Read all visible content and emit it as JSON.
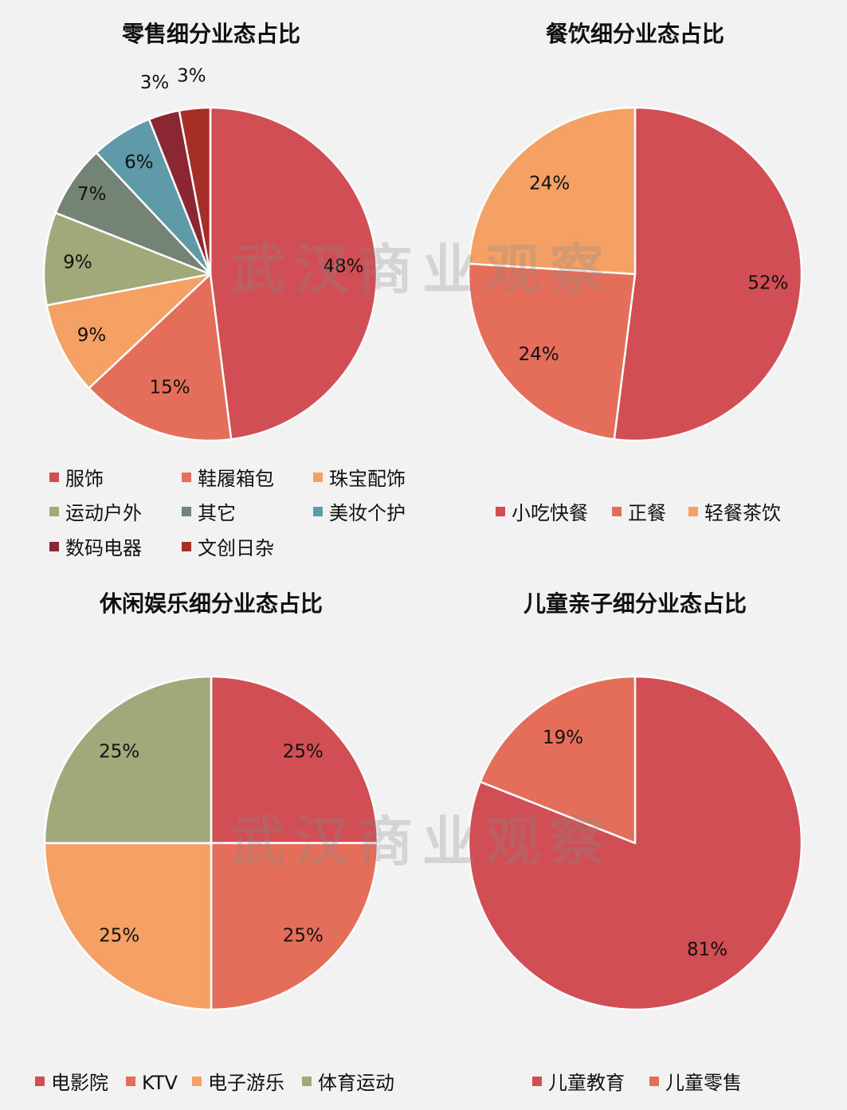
{
  "watermark": "武汉商业观察",
  "chart_data": [
    {
      "type": "pie",
      "title": "零售细分业态占比",
      "categories": [
        "服饰",
        "鞋履箱包",
        "珠宝配饰",
        "运动户外",
        "其它",
        "美妆个护",
        "数码电器",
        "文创日杂"
      ],
      "values": [
        48,
        15,
        9,
        9,
        7,
        6,
        3,
        3
      ],
      "labels": [
        "48%",
        "15%",
        "9%",
        "9%",
        "7%",
        "6%",
        "3%",
        "3%"
      ],
      "colors": [
        "#d14e54",
        "#e56e5a",
        "#f5a064",
        "#a1a97a",
        "#748474",
        "#5f9aa8",
        "#8b2633",
        "#a52f24"
      ],
      "legend": "bottom"
    },
    {
      "type": "pie",
      "title": "餐饮细分业态占比",
      "categories": [
        "小吃快餐",
        "正餐",
        "轻餐茶饮"
      ],
      "values": [
        52,
        24,
        24
      ],
      "labels": [
        "52%",
        "24%",
        "24%"
      ],
      "colors": [
        "#d14e54",
        "#e56e5a",
        "#f5a064"
      ],
      "legend": "bottom"
    },
    {
      "type": "pie",
      "title": "休闲娱乐细分业态占比",
      "categories": [
        "电影院",
        "KTV",
        "电子游乐",
        "体育运动"
      ],
      "values": [
        25,
        25,
        25,
        25
      ],
      "labels": [
        "25%",
        "25%",
        "25%",
        "25%"
      ],
      "colors": [
        "#d14e54",
        "#e56e5a",
        "#f5a064",
        "#a1a97a"
      ],
      "legend": "bottom"
    },
    {
      "type": "pie",
      "title": "儿童亲子细分业态占比",
      "categories": [
        "儿童教育",
        "儿童零售"
      ],
      "values": [
        81,
        19
      ],
      "labels": [
        "81%",
        "19%"
      ],
      "colors": [
        "#d14e54",
        "#e56e5a"
      ],
      "legend": "bottom"
    }
  ]
}
